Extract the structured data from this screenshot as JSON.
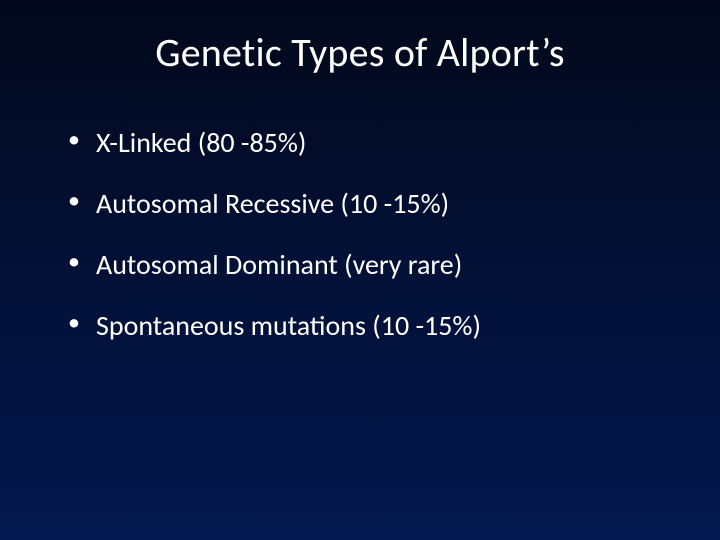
{
  "slide": {
    "title": "Genetic Types of Alport’s",
    "bullets": [
      "X-Linked (80 -85%)",
      "Autosomal Recessive (10 -15%)",
      "Autosomal Dominant (very rare)",
      "Spontaneous mutations (10 -15%)"
    ],
    "background_gradient": [
      "#02081a",
      "#031034",
      "#03184e"
    ],
    "text_color": "#ffffff",
    "title_fontsize": 40,
    "bullet_fontsize": 28,
    "font_family": "Calibri"
  }
}
